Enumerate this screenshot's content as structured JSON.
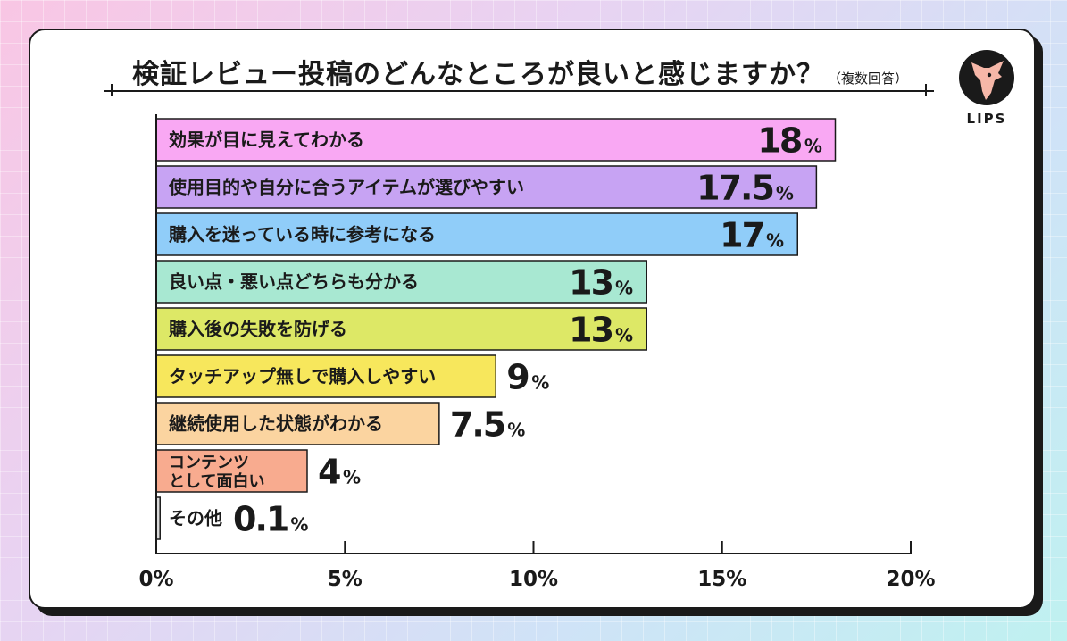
{
  "title": "検証レビュー投稿のどんなところが良いと感じますか？",
  "subtitle": "（複数回答）",
  "logo_text": "LIPS",
  "chart_data": {
    "type": "bar",
    "orientation": "horizontal",
    "title": "検証レビュー投稿のどんなところが良いと感じますか？",
    "subtitle": "（複数回答）",
    "xlim": [
      0,
      20
    ],
    "x_ticks": [
      "0%",
      "5%",
      "10%",
      "15%",
      "20%"
    ],
    "x_tick_values": [
      0,
      5,
      10,
      15,
      20
    ],
    "grid": "vertical ticks only",
    "categories": [
      "効果が目に見えてわかる",
      "使用目的や自分に合うアイテムが選びやすい",
      "購入を迷っている時に参考になる",
      "良い点・悪い点どちらも分かる",
      "購入後の失敗を防げる",
      "タッチアップ無しで購入しやすい",
      "継続使用した状態がわかる",
      "コンテンツ として面白い",
      "その他"
    ],
    "category_lines": [
      [
        "効果が目に見えてわかる"
      ],
      [
        "使用目的や自分に合うアイテムが選びやすい"
      ],
      [
        "購入を迷っている時に参考になる"
      ],
      [
        "良い点・悪い点どちらも分かる"
      ],
      [
        "購入後の失敗を防げる"
      ],
      [
        "タッチアップ無しで購入しやすい"
      ],
      [
        "継続使用した状態がわかる"
      ],
      [
        "コンテンツ",
        "として面白い"
      ],
      [
        "その他"
      ]
    ],
    "values": [
      18,
      17.5,
      17,
      13,
      13,
      9,
      7.5,
      4,
      0.1
    ],
    "value_labels": [
      "18",
      "17.5",
      "17",
      "13",
      "13",
      "9",
      "7.5",
      "4",
      "0.1"
    ],
    "value_suffix": "%",
    "colors": [
      "#f9a8f3",
      "#c7a3f3",
      "#90cdf9",
      "#a8e8d2",
      "#dde866",
      "#f7e75c",
      "#fbd4a0",
      "#f8ab8f",
      "#d9d9d9"
    ]
  }
}
